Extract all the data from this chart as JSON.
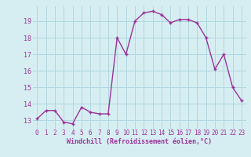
{
  "x": [
    0,
    1,
    2,
    3,
    4,
    5,
    6,
    7,
    8,
    9,
    10,
    11,
    12,
    13,
    14,
    15,
    16,
    17,
    18,
    19,
    20,
    21,
    22,
    23
  ],
  "y": [
    13.1,
    13.6,
    13.6,
    12.9,
    12.8,
    13.8,
    13.5,
    13.4,
    13.4,
    18.0,
    17.0,
    19.0,
    19.5,
    19.6,
    19.4,
    18.9,
    19.1,
    19.1,
    18.9,
    18.0,
    16.1,
    17.0,
    15.0,
    14.2
  ],
  "line_color": "#993399",
  "marker": "+",
  "marker_size": 3,
  "bg_color": "#d6eef2",
  "grid_color": "#b0d8e0",
  "xlabel": "Windchill (Refroidissement éolien,°C)",
  "xlabel_color": "#993399",
  "tick_color": "#993399",
  "ylim": [
    12.5,
    19.9
  ],
  "xlim": [
    -0.5,
    23.5
  ],
  "yticks": [
    13,
    14,
    15,
    16,
    17,
    18,
    19
  ],
  "xticks": [
    0,
    1,
    2,
    3,
    4,
    5,
    6,
    7,
    8,
    9,
    10,
    11,
    12,
    13,
    14,
    15,
    16,
    17,
    18,
    19,
    20,
    21,
    22,
    23
  ],
  "line_width": 1.0,
  "tick_fontsize": 5.5,
  "xlabel_fontsize": 6.0,
  "ytick_fontsize": 6.0
}
